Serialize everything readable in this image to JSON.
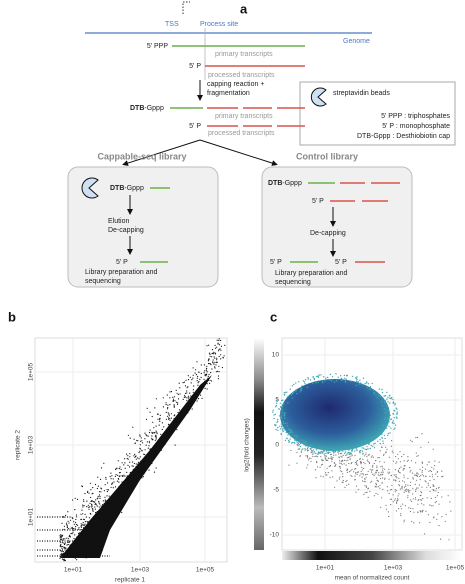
{
  "panel_a": {
    "label": "a",
    "tss": "TSS",
    "process_site": "Process site",
    "genome": "Genome",
    "top": {
      "ppp": "5' PPP",
      "primary": "primary transcripts",
      "p": "5' P",
      "processed": "processed transcripts"
    },
    "step": [
      "capping reaction +",
      "fragmentation"
    ],
    "after": {
      "dtb": "DTB",
      "gppp": "-Gppp",
      "primary": "primary transcripts",
      "p": "5' P",
      "processed": "processed transcripts"
    },
    "legend": {
      "beads": "streptavidin beads",
      "ppp": "5' PPP : triphosphates",
      "p": "5' P : monophosphate",
      "dtb": "DTB-Gppp : Desthiobiotin cap"
    },
    "capable": {
      "title": "Cappable-seq library",
      "dtb": "DTB",
      "gppp": "-Gppp",
      "steps": [
        "Elution",
        "De-capping"
      ],
      "p": "5' P",
      "lib": [
        "Library preparation and",
        "sequencing"
      ]
    },
    "control": {
      "title": "Control library",
      "dtb": "DTB",
      "gppp": "-Gppp",
      "p1": "5' P",
      "step": "De-capping",
      "p2": "5' P",
      "p3": "5' P",
      "lib": [
        "Library preparation and",
        "sequencing"
      ]
    }
  },
  "panel_b": {
    "label": "b",
    "xlabel": "replicate 1",
    "ylabel": "replicate 2",
    "xticks": [
      "1e+01",
      "1e+03",
      "1e+05"
    ],
    "yticks": [
      "1e+01",
      "1e+03",
      "1e+05"
    ]
  },
  "panel_c": {
    "label": "c",
    "xlabel": "mean of normalized count",
    "ylabel": "log2(fold changes)",
    "xticks": [
      "1e+01",
      "1e+03",
      "1e+05"
    ],
    "yticks": [
      "10",
      "5",
      "0",
      "-5",
      "-10"
    ]
  }
}
